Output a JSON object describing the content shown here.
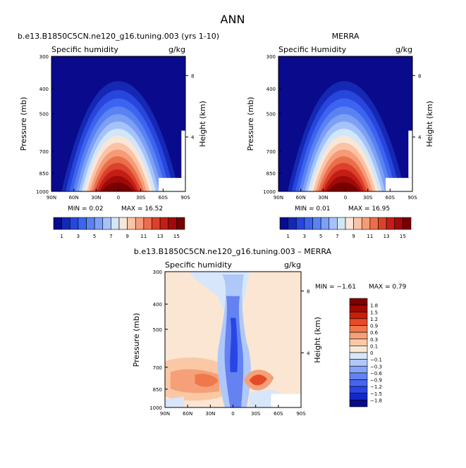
{
  "figure": {
    "title": "ANN"
  },
  "chart_data": [
    {
      "type": "heatmap",
      "panel_title": "b.e13.B1850C5CN.ne120_g16.tuning.003 (yrs 1-10)",
      "left_label": "Specific humidity",
      "units": "g/kg",
      "ylabel": "Pressure (mb)",
      "y2label": "Height (km)",
      "pressure_ticks": [
        "300",
        "400",
        "500",
        "700",
        "850",
        "1000"
      ],
      "height_ticks": [
        "8",
        "4"
      ],
      "lat_ticks": [
        "90N",
        "60N",
        "30N",
        "0",
        "30S",
        "60S",
        "90S"
      ],
      "min_text": "MIN =    0.02",
      "max_text": "MAX =   16.52",
      "min": 0.02,
      "max": 16.52,
      "colorbar_labels": [
        "1",
        "3",
        "5",
        "7",
        "9",
        "11",
        "13",
        "15"
      ]
    },
    {
      "type": "heatmap",
      "panel_title": "MERRA",
      "left_label": "Specific Humidity",
      "units": "g/kg",
      "ylabel": "Pressure (mb)",
      "y2label": "Height (km)",
      "pressure_ticks": [
        "300",
        "400",
        "500",
        "700",
        "850",
        "1000"
      ],
      "height_ticks": [
        "8",
        "4"
      ],
      "lat_ticks": [
        "90N",
        "60N",
        "30N",
        "0",
        "30S",
        "60S",
        "90S"
      ],
      "min_text": "MIN =    0.01",
      "max_text": "MAX =   16.95",
      "min": 0.01,
      "max": 16.95,
      "colorbar_labels": [
        "1",
        "3",
        "5",
        "7",
        "9",
        "11",
        "13",
        "15"
      ]
    },
    {
      "type": "heatmap",
      "panel_title": "b.e13.B1850C5CN.ne120_g16.tuning.003 – MERRA",
      "left_label": "Specific humidity",
      "units": "g/kg",
      "ylabel": "Pressure (mb)",
      "y2label": "Height (km)",
      "pressure_ticks": [
        "300",
        "400",
        "500",
        "700",
        "850",
        "1000"
      ],
      "height_ticks": [
        "8",
        "4"
      ],
      "lat_ticks": [
        "90N",
        "60N",
        "30N",
        "0",
        "30S",
        "60S",
        "90S"
      ],
      "min_text": "MIN =   −1.61",
      "max_text": "MAX =    0.79",
      "min": -1.61,
      "max": 0.79,
      "colorbar_labels": [
        "1.8",
        "1.5",
        "1.2",
        "0.9",
        "0.6",
        "0.3",
        "0.1",
        "0",
        "−0.1",
        "−0.3",
        "−0.6",
        "−0.9",
        "−1.2",
        "−1.5",
        "−1.8"
      ]
    }
  ],
  "colors": {
    "full_scale": [
      "#0a0a8c",
      "#1428b4",
      "#2846dc",
      "#3c64f0",
      "#5a82f0",
      "#7ca0f5",
      "#a5c3fa",
      "#d2e6fa",
      "#fae6d7",
      "#fac3a5",
      "#f59b78",
      "#eb6e4b",
      "#dc412d",
      "#c31e14",
      "#a00a0a",
      "#780000"
    ],
    "diff_scale": [
      "#0a0a8c",
      "#1428c8",
      "#2846e6",
      "#4664f0",
      "#6482f0",
      "#87a5f5",
      "#afc8fa",
      "#d7e6fa",
      "#fae6d2",
      "#fac8a5",
      "#f5a078",
      "#f0784b",
      "#e64b28",
      "#c81e0a",
      "#a00a05",
      "#7d0000"
    ]
  }
}
